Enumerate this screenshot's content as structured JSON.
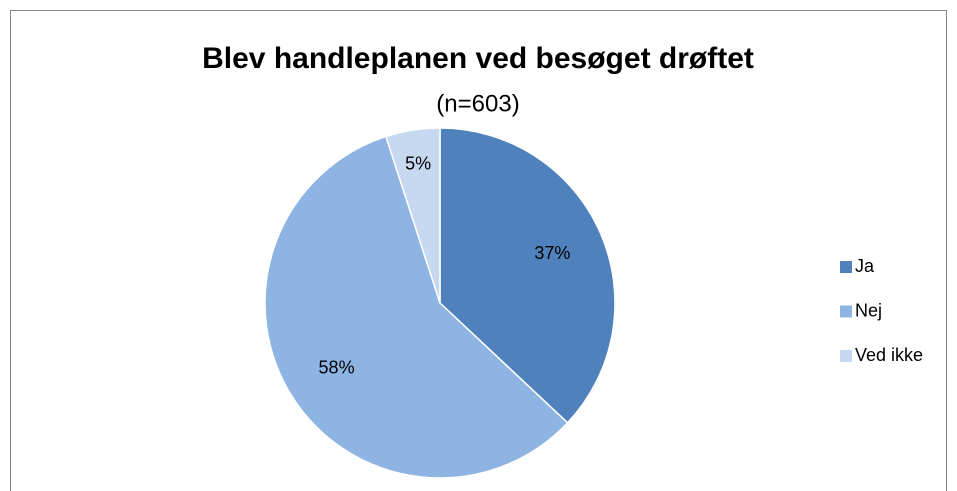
{
  "chart_data": {
    "type": "pie",
    "title": "Blev handleplanen ved besøget drøftet",
    "subtitle": "(n=603)",
    "categories": [
      "Ja",
      "Nej",
      "Ved ikke"
    ],
    "values": [
      37,
      58,
      5
    ],
    "value_labels": [
      "37%",
      "58%",
      "5%"
    ],
    "colors": [
      "#4f81bd",
      "#8eb4e3",
      "#c6d9f1"
    ],
    "legend": "right"
  }
}
